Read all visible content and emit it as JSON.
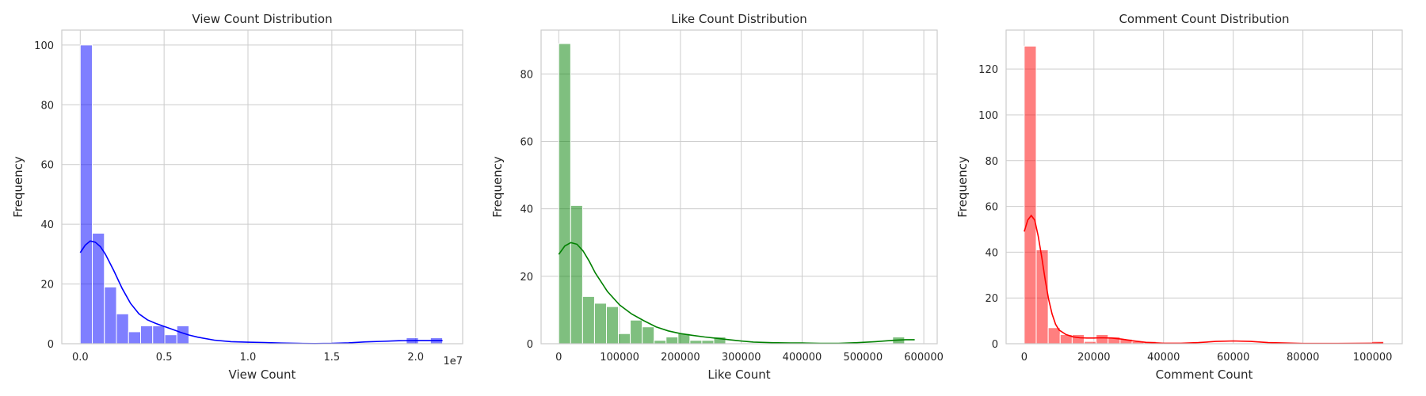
{
  "chart_data": [
    {
      "type": "bar",
      "title": "View Count Distribution",
      "xlabel": "View Count",
      "ylabel": "Frequency",
      "x_offset_label": "1e7",
      "color": "#0000ff",
      "xlim": [
        -1100000,
        22800000
      ],
      "ylim": [
        0,
        105
      ],
      "xticks": [
        0,
        5000000,
        10000000,
        15000000,
        20000000
      ],
      "xtick_labels": [
        "0.0",
        "0.5",
        "1.0",
        "1.5",
        "2.0"
      ],
      "yticks": [
        0,
        20,
        40,
        60,
        80,
        100
      ],
      "bin_start": 0,
      "bin_width": 720000,
      "counts": [
        100,
        37,
        19,
        10,
        4,
        6,
        6,
        3,
        6,
        0,
        0,
        0,
        0,
        0,
        0,
        0,
        0,
        0,
        0,
        0,
        0,
        0,
        0,
        0,
        0,
        0,
        0,
        2,
        0,
        2
      ],
      "kde": {
        "x": [
          0,
          300000,
          600000,
          900000,
          1200000,
          1500000,
          2000000,
          2500000,
          3000000,
          3500000,
          4000000,
          4500000,
          5000000,
          5500000,
          6000000,
          6500000,
          7000000,
          8000000,
          9000000,
          10000000,
          11000000,
          12000000,
          13000000,
          14000000,
          15000000,
          16000000,
          17000000,
          18000000,
          19000000,
          20000000,
          21000000,
          21600000
        ],
        "y": [
          30.5,
          33,
          34.4,
          34,
          32.5,
          30,
          24.5,
          18.5,
          13.5,
          10,
          8,
          6.8,
          5.8,
          4.8,
          3.8,
          2.9,
          2.2,
          1.2,
          0.7,
          0.5,
          0.4,
          0.2,
          0.1,
          0.05,
          0.1,
          0.3,
          0.6,
          0.8,
          1,
          1.1,
          1.1,
          1.1
        ]
      }
    },
    {
      "type": "bar",
      "title": "Like Count Distribution",
      "xlabel": "Like Count",
      "ylabel": "Frequency",
      "color": "#008000",
      "xlim": [
        -29000,
        622000
      ],
      "ylim": [
        0,
        93
      ],
      "xticks": [
        0,
        100000,
        200000,
        300000,
        400000,
        500000,
        600000
      ],
      "xtick_labels": [
        "0",
        "100000",
        "200000",
        "300000",
        "400000",
        "500000",
        "600000"
      ],
      "yticks": [
        0,
        20,
        40,
        60,
        80
      ],
      "bin_start": 0,
      "bin_width": 19600,
      "counts": [
        89,
        41,
        14,
        12,
        11,
        3,
        7,
        5,
        1,
        2,
        3,
        1,
        1,
        2,
        0,
        0,
        0,
        0,
        0,
        0,
        0,
        0,
        0,
        0,
        0,
        0,
        0,
        0,
        2,
        0
      ],
      "kde": {
        "x": [
          0,
          10000,
          20000,
          30000,
          40000,
          50000,
          60000,
          80000,
          100000,
          120000,
          140000,
          160000,
          180000,
          200000,
          220000,
          240000,
          260000,
          280000,
          300000,
          320000,
          350000,
          380000,
          400000,
          430000,
          460000,
          490000,
          520000,
          550000,
          570000,
          585000
        ],
        "y": [
          26.5,
          29,
          30,
          29.5,
          27.5,
          24.5,
          21,
          15.5,
          11.5,
          8.8,
          6.8,
          5,
          3.8,
          3,
          2.5,
          2,
          1.6,
          1.2,
          0.8,
          0.5,
          0.3,
          0.2,
          0.2,
          0.1,
          0.1,
          0.3,
          0.6,
          1,
          1.2,
          1.2
        ]
      }
    },
    {
      "type": "bar",
      "title": "Comment Count Distribution",
      "xlabel": "Comment Count",
      "ylabel": "Frequency",
      "color": "#ff0000",
      "xlim": [
        -5200,
        108500
      ],
      "ylim": [
        0,
        137
      ],
      "xticks": [
        0,
        20000,
        40000,
        60000,
        80000,
        100000
      ],
      "xtick_labels": [
        "0",
        "20000",
        "40000",
        "60000",
        "80000",
        "100000"
      ],
      "yticks": [
        0,
        20,
        40,
        60,
        80,
        100,
        120
      ],
      "bin_start": 0,
      "bin_width": 3440,
      "counts": [
        130,
        41,
        7,
        4,
        4,
        1,
        4,
        3,
        2,
        1,
        1,
        0,
        0,
        0,
        0,
        0,
        0,
        0,
        0,
        0,
        0,
        0,
        0,
        0,
        0,
        0,
        0,
        0,
        0,
        1
      ],
      "kde": {
        "x": [
          0,
          1000,
          2000,
          3000,
          4000,
          5000,
          6000,
          7000,
          8000,
          9000,
          10000,
          12000,
          14000,
          16000,
          18000,
          20000,
          22000,
          25000,
          28000,
          31000,
          35000,
          40000,
          45000,
          50000,
          55000,
          60000,
          65000,
          70000,
          80000,
          90000,
          100000,
          103000
        ],
        "y": [
          49,
          54,
          56,
          54,
          47,
          38,
          28,
          19.5,
          13,
          8.5,
          6,
          4,
          3,
          2.6,
          2.5,
          2.5,
          2.6,
          2.5,
          2,
          1.3,
          0.6,
          0.2,
          0.2,
          0.5,
          1,
          1.2,
          1,
          0.5,
          0.1,
          0.1,
          0.2,
          0.3
        ]
      }
    }
  ]
}
